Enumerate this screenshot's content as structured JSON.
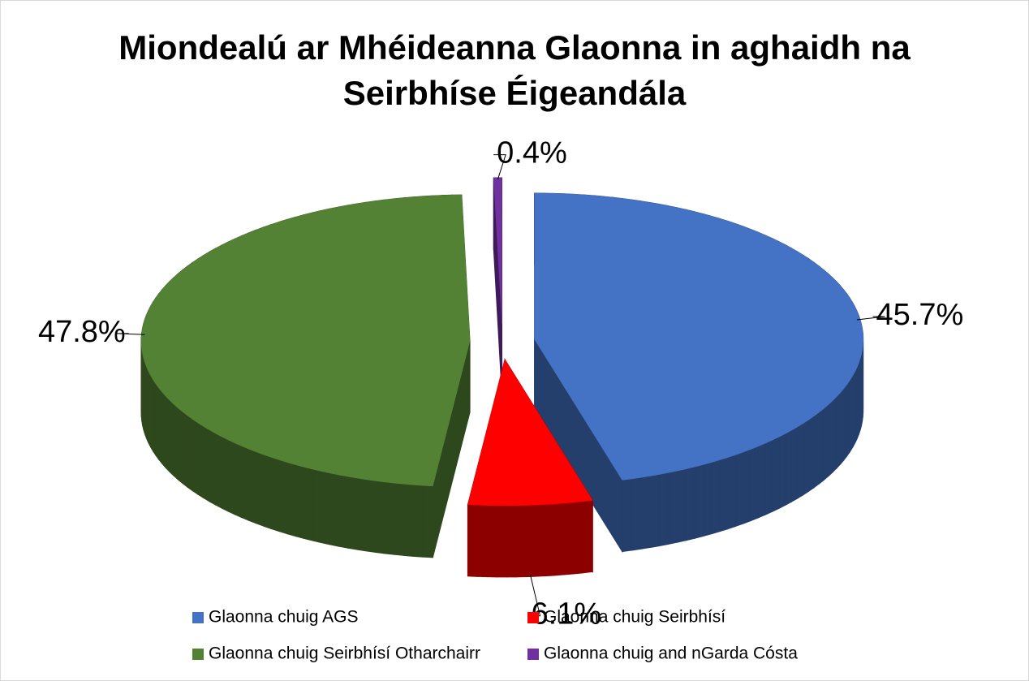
{
  "chart_data": {
    "type": "pie",
    "title": "Miondealú ar Mhéideanna Glaonna in aghaidh na Seirbhíse Éigeandála",
    "categories": [
      "Glaonna chuig AGS",
      "Glaonna chuig Seirbhísí",
      "Glaonna chuig Seirbhísí Otharchairr",
      "Glaonna chuig and nGarda Cósta"
    ],
    "values": [
      45.7,
      6.1,
      47.8,
      0.4
    ],
    "value_labels": [
      "45.7%",
      "6.1%",
      "47.8%",
      "0.4%"
    ],
    "colors": [
      "#4472c4",
      "#ff0000",
      "#548235",
      "#7030a0"
    ],
    "legend": "bottom"
  }
}
